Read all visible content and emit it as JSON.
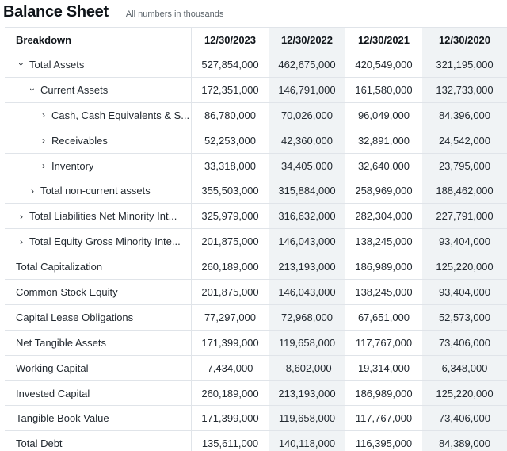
{
  "page": {
    "title": "Balance Sheet",
    "subtitle": "All numbers in thousands"
  },
  "table": {
    "header": {
      "breakdown": "Breakdown",
      "dates": [
        "12/30/2023",
        "12/30/2022",
        "12/30/2021",
        "12/30/2020"
      ]
    },
    "rows": [
      {
        "label": "Total Assets",
        "level": 1,
        "expander": "expanded",
        "values": [
          "527,854,000",
          "462,675,000",
          "420,549,000",
          "321,195,000"
        ]
      },
      {
        "label": "Current Assets",
        "level": 2,
        "expander": "expanded",
        "values": [
          "172,351,000",
          "146,791,000",
          "161,580,000",
          "132,733,000"
        ]
      },
      {
        "label": "Cash, Cash Equivalents & S...",
        "level": 3,
        "expander": "collapsed",
        "values": [
          "86,780,000",
          "70,026,000",
          "96,049,000",
          "84,396,000"
        ]
      },
      {
        "label": "Receivables",
        "level": 3,
        "expander": "collapsed",
        "values": [
          "52,253,000",
          "42,360,000",
          "32,891,000",
          "24,542,000"
        ]
      },
      {
        "label": "Inventory",
        "level": 3,
        "expander": "collapsed",
        "values": [
          "33,318,000",
          "34,405,000",
          "32,640,000",
          "23,795,000"
        ]
      },
      {
        "label": "Total non-current assets",
        "level": 2,
        "expander": "collapsed",
        "values": [
          "355,503,000",
          "315,884,000",
          "258,969,000",
          "188,462,000"
        ]
      },
      {
        "label": "Total Liabilities Net Minority Int...",
        "level": 1,
        "expander": "collapsed",
        "values": [
          "325,979,000",
          "316,632,000",
          "282,304,000",
          "227,791,000"
        ]
      },
      {
        "label": "Total Equity Gross Minority Inte...",
        "level": 1,
        "expander": "collapsed",
        "values": [
          "201,875,000",
          "146,043,000",
          "138,245,000",
          "93,404,000"
        ]
      },
      {
        "label": "Total Capitalization",
        "level": 0,
        "expander": "none",
        "values": [
          "260,189,000",
          "213,193,000",
          "186,989,000",
          "125,220,000"
        ]
      },
      {
        "label": "Common Stock Equity",
        "level": 0,
        "expander": "none",
        "values": [
          "201,875,000",
          "146,043,000",
          "138,245,000",
          "93,404,000"
        ]
      },
      {
        "label": "Capital Lease Obligations",
        "level": 0,
        "expander": "none",
        "values": [
          "77,297,000",
          "72,968,000",
          "67,651,000",
          "52,573,000"
        ]
      },
      {
        "label": "Net Tangible Assets",
        "level": 0,
        "expander": "none",
        "values": [
          "171,399,000",
          "119,658,000",
          "117,767,000",
          "73,406,000"
        ]
      },
      {
        "label": "Working Capital",
        "level": 0,
        "expander": "none",
        "values": [
          "7,434,000",
          "-8,602,000",
          "19,314,000",
          "6,348,000"
        ]
      },
      {
        "label": "Invested Capital",
        "level": 0,
        "expander": "none",
        "values": [
          "260,189,000",
          "213,193,000",
          "186,989,000",
          "125,220,000"
        ]
      },
      {
        "label": "Tangible Book Value",
        "level": 0,
        "expander": "none",
        "values": [
          "171,399,000",
          "119,658,000",
          "117,767,000",
          "73,406,000"
        ]
      },
      {
        "label": "Total Debt",
        "level": 0,
        "expander": "none",
        "values": [
          "135,611,000",
          "140,118,000",
          "116,395,000",
          "84,389,000"
        ]
      }
    ]
  }
}
